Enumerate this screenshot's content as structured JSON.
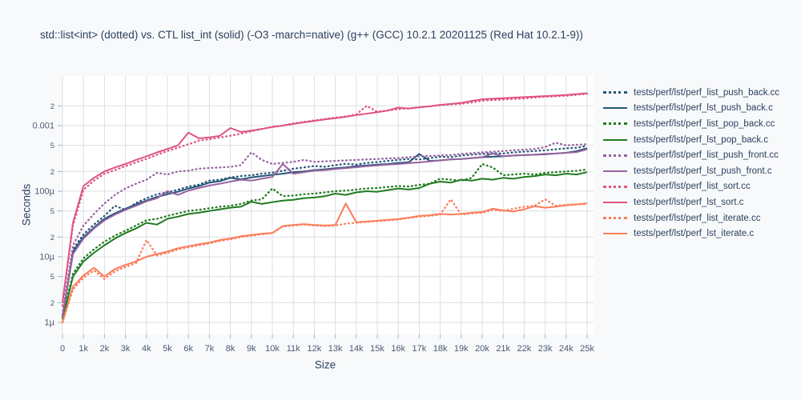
{
  "styles": {
    "page_bg": "#f8f9fa",
    "plot_bg": "#ffffff",
    "grid_color": "#dcdfe3",
    "tick_mark_color": "#aab4c0",
    "tick_text_color": "#4a5c74",
    "text_color": "#2a3f5f"
  },
  "chart_data": {
    "type": "line",
    "title": "std::list<int> (dotted) vs. CTL list_int (solid) (-O3 -march=native) (g++ (GCC) 10.2.1 20201125 (Red Hat 10.2.1-9))",
    "xlabel": "Size",
    "ylabel": "Seconds",
    "grid": true,
    "legend_position": "right",
    "y_scale": "log",
    "xlim": [
      0,
      25000
    ],
    "ylim": [
      6.6e-07,
      0.0057
    ],
    "x_ticks": [
      {
        "v": 0,
        "label": "0"
      },
      {
        "v": 1000,
        "label": "1k"
      },
      {
        "v": 2000,
        "label": "2k"
      },
      {
        "v": 3000,
        "label": "3k"
      },
      {
        "v": 4000,
        "label": "4k"
      },
      {
        "v": 5000,
        "label": "5k"
      },
      {
        "v": 6000,
        "label": "6k"
      },
      {
        "v": 7000,
        "label": "7k"
      },
      {
        "v": 8000,
        "label": "8k"
      },
      {
        "v": 9000,
        "label": "9k"
      },
      {
        "v": 10000,
        "label": "10k"
      },
      {
        "v": 11000,
        "label": "11k"
      },
      {
        "v": 12000,
        "label": "12k"
      },
      {
        "v": 13000,
        "label": "13k"
      },
      {
        "v": 14000,
        "label": "14k"
      },
      {
        "v": 15000,
        "label": "15k"
      },
      {
        "v": 16000,
        "label": "16k"
      },
      {
        "v": 17000,
        "label": "17k"
      },
      {
        "v": 18000,
        "label": "18k"
      },
      {
        "v": 19000,
        "label": "19k"
      },
      {
        "v": 20000,
        "label": "20k"
      },
      {
        "v": 21000,
        "label": "21k"
      },
      {
        "v": 22000,
        "label": "22k"
      },
      {
        "v": 23000,
        "label": "23k"
      },
      {
        "v": 24000,
        "label": "24k"
      },
      {
        "v": 25000,
        "label": "25k"
      }
    ],
    "y_ticks": [
      {
        "v": 1e-06,
        "label": "1µ",
        "minor": false
      },
      {
        "v": 2e-06,
        "label": "2",
        "minor": true
      },
      {
        "v": 5e-06,
        "label": "5",
        "minor": true
      },
      {
        "v": 1e-05,
        "label": "10µ",
        "minor": false
      },
      {
        "v": 2e-05,
        "label": "2",
        "minor": true
      },
      {
        "v": 5e-05,
        "label": "5",
        "minor": true
      },
      {
        "v": 0.0001,
        "label": "100µ",
        "minor": false
      },
      {
        "v": 0.0002,
        "label": "2",
        "minor": true
      },
      {
        "v": 0.0005,
        "label": "5",
        "minor": true
      },
      {
        "v": 0.001,
        "label": "0.001",
        "minor": false
      },
      {
        "v": 0.002,
        "label": "2",
        "minor": true
      }
    ],
    "x": [
      0,
      500,
      1000,
      1500,
      2000,
      2500,
      3000,
      3500,
      4000,
      4500,
      5000,
      5500,
      6000,
      6500,
      7000,
      7500,
      8000,
      8500,
      9000,
      9500,
      10000,
      10500,
      11000,
      11500,
      12000,
      12500,
      13000,
      13500,
      14000,
      14500,
      15000,
      15500,
      16000,
      16500,
      17000,
      17500,
      18000,
      18500,
      19000,
      19500,
      20000,
      20500,
      21000,
      21500,
      22000,
      22500,
      23000,
      23500,
      24000,
      24500,
      25000
    ],
    "series": [
      {
        "name": "tests/perf/lst/perf_list_push_back.cc",
        "color": "#26567a",
        "dash": "dotted",
        "values": [
          1.3e-06,
          1.3e-05,
          2.2e-05,
          3.1e-05,
          4.2e-05,
          6e-05,
          5.2e-05,
          6.6e-05,
          7.8e-05,
          9e-05,
          9.6e-05,
          0.000105,
          0.000118,
          0.000126,
          0.000145,
          0.00015,
          0.000162,
          0.00017,
          0.000175,
          0.000185,
          0.000192,
          0.000205,
          0.00022,
          0.00023,
          0.000242,
          0.000236,
          0.00025,
          0.000262,
          0.000255,
          0.00027,
          0.000278,
          0.00029,
          0.0003,
          0.00031,
          0.000305,
          0.00032,
          0.000335,
          0.00033,
          0.00035,
          0.00036,
          0.00037,
          0.00038,
          0.000375,
          0.00039,
          0.0004,
          0.00041,
          0.00042,
          0.000435,
          0.00045,
          0.00046,
          0.00049
        ]
      },
      {
        "name": "tests/perf/lst/perf_lst_push_back.c",
        "color": "#26567a",
        "dash": "solid",
        "values": [
          1.2e-06,
          1.2e-05,
          2e-05,
          2.8e-05,
          3.8e-05,
          4.6e-05,
          5.4e-05,
          6.3e-05,
          7.2e-05,
          8.2e-05,
          9e-05,
          9.8e-05,
          0.00011,
          0.00012,
          0.000135,
          0.000142,
          0.00016,
          0.000152,
          0.000162,
          0.00017,
          0.000178,
          0.000185,
          0.000195,
          0.0002,
          0.00021,
          0.000216,
          0.000224,
          0.00023,
          0.00024,
          0.000247,
          0.000255,
          0.00026,
          0.00027,
          0.000276,
          0.00037,
          0.00029,
          0.000295,
          0.000305,
          0.00031,
          0.00032,
          0.00033,
          0.000335,
          0.00034,
          0.00035,
          0.000355,
          0.00036,
          0.000365,
          0.000375,
          0.000385,
          0.00041,
          0.00045
        ]
      },
      {
        "name": "tests/perf/lst/perf_list_pop_back.cc",
        "color": "#1f7b1f",
        "dash": "dotted",
        "values": [
          1.2e-06,
          5.5e-06,
          9.5e-06,
          1.3e-05,
          1.7e-05,
          2.1e-05,
          2.5e-05,
          3e-05,
          3.6e-05,
          3.8e-05,
          4.2e-05,
          4.6e-05,
          5e-05,
          5.2e-05,
          5.5e-05,
          5.8e-05,
          6e-05,
          6.4e-05,
          7.2e-05,
          7.5e-05,
          0.00011,
          8.4e-05,
          8.6e-05,
          9e-05,
          9.2e-05,
          9.6e-05,
          0.0001,
          0.000102,
          0.000106,
          0.00011,
          0.000112,
          0.000116,
          0.00012,
          0.000118,
          0.000125,
          0.00013,
          0.000155,
          0.00015,
          0.000145,
          0.00016,
          0.00026,
          0.00023,
          0.000175,
          0.00018,
          0.000185,
          0.00018,
          0.00019,
          0.000195,
          0.0002,
          0.000205,
          0.000215
        ]
      },
      {
        "name": "tests/perf/lst/perf_lst_pop_back.c",
        "color": "#1f7b1f",
        "dash": "solid",
        "values": [
          1.1e-06,
          5e-06,
          8.5e-06,
          1.15e-05,
          1.5e-05,
          1.9e-05,
          2.3e-05,
          2.7e-05,
          3.3e-05,
          3.1e-05,
          3.8e-05,
          4.1e-05,
          4.5e-05,
          4.7e-05,
          5e-05,
          5.3e-05,
          5.6e-05,
          5.8e-05,
          6.9e-05,
          6.4e-05,
          6.8e-05,
          7.2e-05,
          7.4e-05,
          7.8e-05,
          8e-05,
          8.4e-05,
          9.2e-05,
          8.8e-05,
          9.6e-05,
          0.0001,
          9.8e-05,
          0.000104,
          0.00011,
          0.000106,
          0.000112,
          0.00013,
          0.00014,
          0.000135,
          0.00015,
          0.000145,
          0.000155,
          0.00015,
          0.00016,
          0.000155,
          0.000165,
          0.00017,
          0.00018,
          0.000175,
          0.000185,
          0.00018,
          0.000195
        ]
      },
      {
        "name": "tests/perf/lst/perf_list_push_front.cc",
        "color": "#96639f",
        "dash": "dotted",
        "values": [
          1.3e-06,
          1.5e-05,
          3e-05,
          4.5e-05,
          6.5e-05,
          8.8e-05,
          0.00011,
          0.00013,
          0.00015,
          0.00019,
          0.00018,
          0.0002,
          0.000205,
          0.00022,
          0.000226,
          0.00023,
          0.000235,
          0.00025,
          0.00039,
          0.0003,
          0.00026,
          0.00027,
          0.00028,
          0.0003,
          0.00028,
          0.000285,
          0.00029,
          0.000295,
          0.0003,
          0.000305,
          0.00031,
          0.000315,
          0.00032,
          0.00033,
          0.00034,
          0.000345,
          0.00035,
          0.000355,
          0.00037,
          0.00038,
          0.00039,
          0.0004,
          0.00041,
          0.00042,
          0.00043,
          0.00044,
          0.00047,
          0.00055,
          0.0005,
          0.00051,
          0.00052
        ]
      },
      {
        "name": "tests/perf/lst/perf_lst_push_front.c",
        "color": "#96639f",
        "dash": "solid",
        "values": [
          1.2e-06,
          1.1e-05,
          1.9e-05,
          2.7e-05,
          3.6e-05,
          4.4e-05,
          5.2e-05,
          6e-05,
          7e-05,
          7.8e-05,
          0.0001,
          8.8e-05,
          0.000102,
          0.000112,
          0.000122,
          0.00013,
          0.00014,
          0.00015,
          0.000145,
          0.000155,
          0.000165,
          0.00026,
          0.000185,
          0.000195,
          0.000205,
          0.00021,
          0.000218,
          0.000225,
          0.000232,
          0.00024,
          0.000248,
          0.000255,
          0.00026,
          0.000268,
          0.000275,
          0.000285,
          0.000295,
          0.000305,
          0.00031,
          0.00032,
          0.00033,
          0.000375,
          0.00034,
          0.00035,
          0.000355,
          0.00036,
          0.00037,
          0.000375,
          0.000385,
          0.000395,
          0.000435
        ]
      },
      {
        "name": "tests/perf/lst/perf_list_sort.cc",
        "color": "#e05384",
        "dash": "dotted",
        "values": [
          1.8e-06,
          3e-05,
          0.000105,
          0.000145,
          0.000185,
          0.00021,
          0.00024,
          0.000275,
          0.00031,
          0.00036,
          0.00041,
          0.00046,
          0.00052,
          0.00059,
          0.00062,
          0.00066,
          0.0007,
          0.00075,
          0.00082,
          0.00089,
          0.00096,
          0.001,
          0.00108,
          0.00114,
          0.0012,
          0.00126,
          0.00132,
          0.00138,
          0.00148,
          0.002,
          0.00162,
          0.0017,
          0.00178,
          0.00184,
          0.0019,
          0.00196,
          0.00205,
          0.0021,
          0.00215,
          0.00225,
          0.0024,
          0.00245,
          0.0025,
          0.00255,
          0.0026,
          0.00268,
          0.00275,
          0.0028,
          0.00285,
          0.00295,
          0.00305
        ]
      },
      {
        "name": "tests/perf/lst/perf_lst_sort.c",
        "color": "#e05384",
        "dash": "solid",
        "values": [
          2e-06,
          3.3e-05,
          0.00012,
          0.00016,
          0.0002,
          0.00023,
          0.00026,
          0.0003,
          0.00034,
          0.00039,
          0.00044,
          0.0005,
          0.00078,
          0.00064,
          0.00066,
          0.0007,
          0.00092,
          0.0008,
          0.00084,
          0.00089,
          0.00095,
          0.001,
          0.00106,
          0.00112,
          0.00118,
          0.00124,
          0.0013,
          0.00136,
          0.00145,
          0.00152,
          0.0016,
          0.0017,
          0.00188,
          0.00182,
          0.0019,
          0.00197,
          0.00207,
          0.00214,
          0.00222,
          0.00238,
          0.00252,
          0.00257,
          0.00262,
          0.00267,
          0.00272,
          0.00277,
          0.00282,
          0.00287,
          0.00293,
          0.00302,
          0.00312
        ]
      },
      {
        "name": "tests/perf/lst/perf_list_iterate.cc",
        "color": "#fb7d5b",
        "dash": "dotted",
        "values": [
          1e-06,
          3.2e-06,
          4.8e-06,
          6.2e-06,
          4.6e-06,
          6e-06,
          7e-06,
          8e-06,
          1.8e-05,
          1.05e-05,
          1.15e-05,
          1.3e-05,
          1.4e-05,
          1.5e-05,
          1.6e-05,
          1.75e-05,
          1.85e-05,
          2e-05,
          2.1e-05,
          2.2e-05,
          2.3e-05,
          2.9e-05,
          3e-05,
          3.1e-05,
          3e-05,
          2.95e-05,
          3e-05,
          3.2e-05,
          3.3e-05,
          3.4e-05,
          3.5e-05,
          3.6e-05,
          3.7e-05,
          3.9e-05,
          4.1e-05,
          4.2e-05,
          4.4e-05,
          7.5e-05,
          4.4e-05,
          4.6e-05,
          4.7e-05,
          5.2e-05,
          5e-05,
          5.4e-05,
          5.8e-05,
          6e-05,
          7.5e-05,
          6e-05,
          6.2e-05,
          6.3e-05,
          6.4e-05
        ]
      },
      {
        "name": "tests/perf/lst/perf_lst_iterate.c",
        "color": "#fb7d5b",
        "dash": "solid",
        "values": [
          1e-06,
          3.5e-06,
          5.2e-06,
          6.8e-06,
          5e-06,
          6.5e-06,
          7.5e-06,
          8.5e-06,
          1e-05,
          1.1e-05,
          1.2e-05,
          1.35e-05,
          1.45e-05,
          1.55e-05,
          1.65e-05,
          1.8e-05,
          1.9e-05,
          2.05e-05,
          2.15e-05,
          2.25e-05,
          2.3e-05,
          2.95e-05,
          3.05e-05,
          3.15e-05,
          3.05e-05,
          3e-05,
          3.05e-05,
          6.5e-05,
          3.35e-05,
          3.45e-05,
          3.55e-05,
          3.65e-05,
          3.75e-05,
          3.95e-05,
          4.2e-05,
          4.3e-05,
          4.5e-05,
          4.4e-05,
          4.5e-05,
          4.7e-05,
          4.8e-05,
          5.4e-05,
          5.1e-05,
          4.9e-05,
          5.3e-05,
          5.9e-05,
          5.6e-05,
          5.8e-05,
          6.1e-05,
          6.3e-05,
          6.5e-05
        ]
      }
    ]
  }
}
